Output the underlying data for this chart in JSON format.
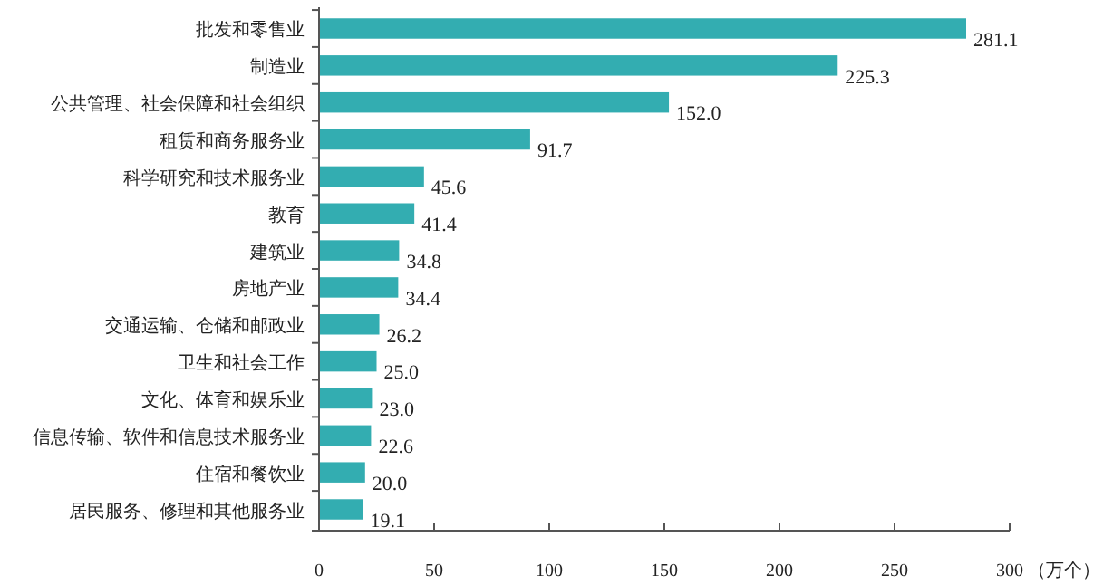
{
  "chart_data": {
    "type": "bar",
    "orientation": "horizontal",
    "categories": [
      "批发和零售业",
      "制造业",
      "公共管理、社会保障和社会组织",
      "租赁和商务服务业",
      "科学研究和技术服务业",
      "教育",
      "建筑业",
      "房地产业",
      "交通运输、仓储和邮政业",
      "卫生和社会工作",
      "文化、体育和娱乐业",
      "信息传输、软件和信息技术服务业",
      "住宿和餐饮业",
      "居民服务、修理和其他服务业"
    ],
    "values": [
      281.1,
      225.3,
      152.0,
      91.7,
      45.6,
      41.4,
      34.8,
      34.4,
      26.2,
      25.0,
      23.0,
      22.6,
      20.0,
      19.1
    ],
    "value_labels": [
      "281.1",
      "225.3",
      "152.0",
      "91.7",
      "45.6",
      "41.4",
      "34.8",
      "34.4",
      "26.2",
      "25.0",
      "23.0",
      "22.6",
      "20.0",
      "19.1"
    ],
    "color": "#33adb1",
    "xlim": [
      0,
      300
    ],
    "xticks": [
      0,
      50,
      100,
      150,
      200,
      250,
      300
    ],
    "xlabel": "（万个）"
  }
}
